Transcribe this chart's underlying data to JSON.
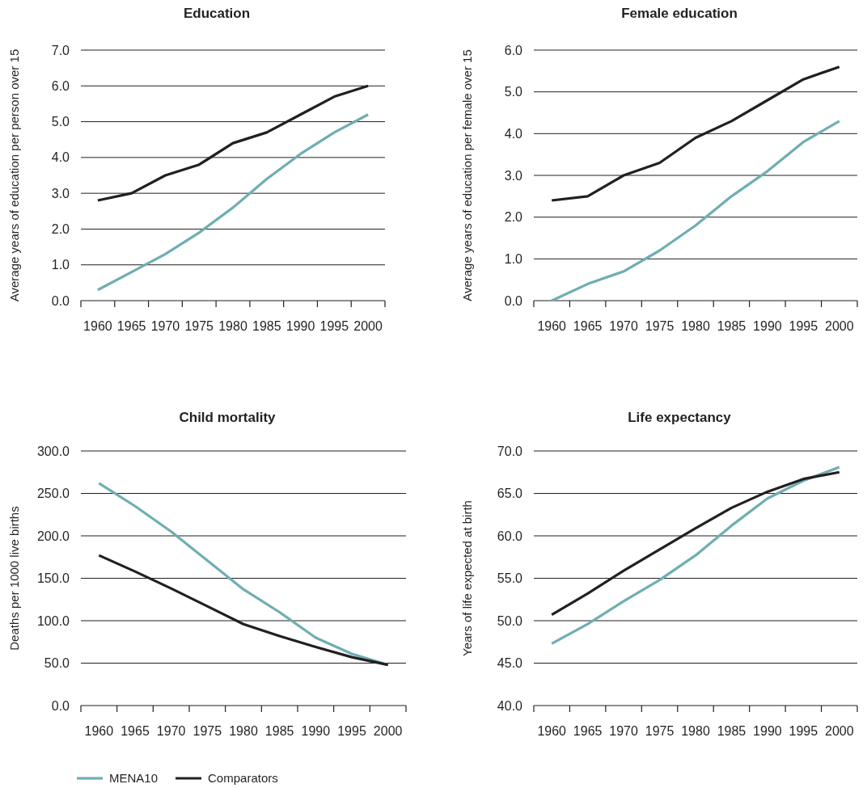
{
  "chart_data": [
    {
      "type": "line",
      "title": "Education",
      "ylabel": "Average years of education per person over 15",
      "categories": [
        "1960",
        "1965",
        "1970",
        "1975",
        "1980",
        "1985",
        "1990",
        "1995",
        "2000"
      ],
      "ylim": [
        0,
        7
      ],
      "yticks": [
        {
          "value": 0,
          "label": "0.0"
        },
        {
          "value": 1,
          "label": "1.0"
        },
        {
          "value": 2,
          "label": "2.0"
        },
        {
          "value": 3,
          "label": "3.0"
        },
        {
          "value": 4,
          "label": "4.0"
        },
        {
          "value": 5,
          "label": "5.0"
        },
        {
          "value": 6,
          "label": "6.0"
        },
        {
          "value": 7,
          "label": "7.0"
        }
      ],
      "grid": "y",
      "legend": false,
      "series": [
        {
          "color": "#6eaeb2",
          "values": [
            0.3,
            0.8,
            1.3,
            1.9,
            2.6,
            3.4,
            4.1,
            4.7,
            5.2
          ]
        },
        {
          "color": "#231f20",
          "values": [
            2.8,
            3.0,
            3.5,
            3.8,
            4.4,
            4.7,
            5.2,
            5.7,
            6.0
          ]
        }
      ]
    },
    {
      "type": "line",
      "title": "Female education",
      "ylabel": "Average years of education per female over 15",
      "categories": [
        "1960",
        "1965",
        "1970",
        "1975",
        "1980",
        "1985",
        "1990",
        "1995",
        "2000"
      ],
      "ylim": [
        0,
        6
      ],
      "yticks": [
        {
          "value": 0,
          "label": "0.0"
        },
        {
          "value": 1,
          "label": "1.0"
        },
        {
          "value": 2,
          "label": "2.0"
        },
        {
          "value": 3,
          "label": "3.0"
        },
        {
          "value": 4,
          "label": "4.0"
        },
        {
          "value": 5,
          "label": "5.0"
        },
        {
          "value": 6,
          "label": "6.0"
        }
      ],
      "grid": "y",
      "legend": false,
      "series": [
        {
          "color": "#6eaeb2",
          "values": [
            0.0,
            0.4,
            0.7,
            1.2,
            1.8,
            2.5,
            3.1,
            3.8,
            4.3
          ]
        },
        {
          "color": "#231f20",
          "values": [
            2.4,
            2.5,
            3.0,
            3.3,
            3.9,
            4.3,
            4.8,
            5.3,
            5.6
          ]
        }
      ]
    },
    {
      "type": "line",
      "title": "Child mortality",
      "ylabel": "Deaths per 1000 live births",
      "categories": [
        "1960",
        "1965",
        "1970",
        "1975",
        "1980",
        "1985",
        "1990",
        "1995",
        "2000"
      ],
      "ylim": [
        0,
        300
      ],
      "yticks": [
        {
          "value": 0,
          "label": "0.0"
        },
        {
          "value": 50,
          "label": "50.0"
        },
        {
          "value": 100,
          "label": "100.0"
        },
        {
          "value": 150,
          "label": "150.0"
        },
        {
          "value": 200,
          "label": "200.0"
        },
        {
          "value": 250,
          "label": "250.0"
        },
        {
          "value": 300,
          "label": "300.0"
        }
      ],
      "grid": "y",
      "legend": "bottom",
      "series": [
        {
          "name": "MENA10",
          "color": "#6eaeb2",
          "values": [
            262,
            235,
            205,
            171,
            137,
            110,
            80,
            61,
            48
          ]
        },
        {
          "name": "Comparators",
          "color": "#231f20",
          "values": [
            177,
            158,
            138,
            117,
            96,
            82,
            69,
            57,
            48
          ]
        }
      ]
    },
    {
      "type": "line",
      "title": "Life expectancy",
      "ylabel": "Years of life expected at birth",
      "categories": [
        "1960",
        "1965",
        "1970",
        "1975",
        "1980",
        "1985",
        "1990",
        "1995",
        "2000"
      ],
      "ylim": [
        40,
        70
      ],
      "yticks": [
        {
          "value": 40,
          "label": "40.0"
        },
        {
          "value": 45,
          "label": "45.0"
        },
        {
          "value": 50,
          "label": "50.0"
        },
        {
          "value": 55,
          "label": "55.0"
        },
        {
          "value": 60,
          "label": "60.0"
        },
        {
          "value": 65,
          "label": "65.0"
        },
        {
          "value": 70,
          "label": "70.0"
        }
      ],
      "grid": "y",
      "legend": false,
      "series": [
        {
          "color": "#6eaeb2",
          "values": [
            47.3,
            49.6,
            52.3,
            54.8,
            57.7,
            61.2,
            64.4,
            66.5,
            68.1
          ]
        },
        {
          "color": "#231f20",
          "values": [
            50.7,
            53.2,
            55.9,
            58.4,
            60.9,
            63.3,
            65.2,
            66.7,
            67.5
          ]
        }
      ]
    }
  ]
}
